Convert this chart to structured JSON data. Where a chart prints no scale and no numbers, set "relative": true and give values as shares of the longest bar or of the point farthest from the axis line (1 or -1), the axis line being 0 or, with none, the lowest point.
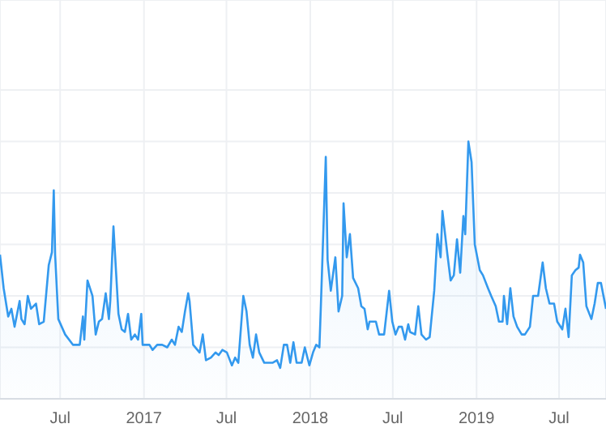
{
  "chart_data": {
    "type": "area",
    "relative": true,
    "grid": true,
    "x": [
      "2016-02-20",
      "2016-02-28",
      "2016-03-09",
      "2016-03-16",
      "2016-03-23",
      "2016-04-03",
      "2016-04-07",
      "2016-04-14",
      "2016-04-21",
      "2016-04-28",
      "2016-05-09",
      "2016-05-16",
      "2016-05-26",
      "2016-06-06",
      "2016-06-13",
      "2016-06-17",
      "2016-06-20",
      "2016-06-27",
      "2016-07-12",
      "2016-07-29",
      "2016-08-13",
      "2016-08-20",
      "2016-08-23",
      "2016-08-30",
      "2016-09-10",
      "2016-09-17",
      "2016-09-24",
      "2016-10-01",
      "2016-10-09",
      "2016-10-16",
      "2016-10-19",
      "2016-10-26",
      "2016-11-06",
      "2016-11-13",
      "2016-11-20",
      "2016-11-27",
      "2016-12-04",
      "2016-12-12",
      "2016-12-19",
      "2016-12-26",
      "2016-12-29",
      "2017-01-13",
      "2017-01-20",
      "2017-01-30",
      "2017-02-10",
      "2017-02-21",
      "2017-03-03",
      "2017-03-10",
      "2017-03-18",
      "2017-03-25",
      "2017-04-01",
      "2017-04-08",
      "2017-04-11",
      "2017-04-19",
      "2017-05-03",
      "2017-05-10",
      "2017-05-17",
      "2017-05-28",
      "2017-06-07",
      "2017-06-14",
      "2017-06-22",
      "2017-07-02",
      "2017-07-13",
      "2017-07-20",
      "2017-07-27",
      "2017-08-07",
      "2017-08-14",
      "2017-08-21",
      "2017-08-28",
      "2017-09-04",
      "2017-09-11",
      "2017-09-22",
      "2017-10-10",
      "2017-10-20",
      "2017-10-27",
      "2017-11-04",
      "2017-11-11",
      "2017-11-18",
      "2017-11-25",
      "2017-12-02",
      "2017-12-13",
      "2017-12-20",
      "2017-12-30",
      "2018-01-07",
      "2018-01-14",
      "2018-01-21",
      "2018-01-24",
      "2018-02-04",
      "2018-02-08",
      "2018-02-15",
      "2018-02-25",
      "2018-03-04",
      "2018-03-12",
      "2018-03-15",
      "2018-03-22",
      "2018-03-29",
      "2018-04-05",
      "2018-04-16",
      "2018-04-23",
      "2018-04-30",
      "2018-05-07",
      "2018-05-11",
      "2018-05-25",
      "2018-06-01",
      "2018-06-12",
      "2018-06-23",
      "2018-06-30",
      "2018-07-07",
      "2018-07-14",
      "2018-07-21",
      "2018-07-28",
      "2018-08-04",
      "2018-08-08",
      "2018-08-19",
      "2018-08-26",
      "2018-09-02",
      "2018-09-12",
      "2018-09-20",
      "2018-09-30",
      "2018-10-07",
      "2018-10-14",
      "2018-10-18",
      "2018-10-29",
      "2018-11-05",
      "2018-11-12",
      "2018-11-19",
      "2018-11-26",
      "2018-12-03",
      "2018-12-07",
      "2018-12-14",
      "2018-12-21",
      "2018-12-28",
      "2019-01-08",
      "2019-01-15",
      "2019-01-26",
      "2019-02-02",
      "2019-02-12",
      "2019-02-19",
      "2019-02-27",
      "2019-03-02",
      "2019-03-09",
      "2019-03-16",
      "2019-03-23",
      "2019-03-31",
      "2019-04-10",
      "2019-04-17",
      "2019-04-28",
      "2019-05-05",
      "2019-05-16",
      "2019-05-26",
      "2019-06-02",
      "2019-06-10",
      "2019-06-20",
      "2019-06-27",
      "2019-07-08",
      "2019-07-15",
      "2019-07-22",
      "2019-07-29",
      "2019-08-06",
      "2019-08-13",
      "2019-08-16",
      "2019-08-23",
      "2019-08-30",
      "2019-09-10",
      "2019-09-17",
      "2019-09-24",
      "2019-10-01",
      "2019-10-12"
    ],
    "values": [
      0.56,
      0.43,
      0.32,
      0.35,
      0.28,
      0.38,
      0.31,
      0.29,
      0.4,
      0.35,
      0.37,
      0.29,
      0.3,
      0.52,
      0.57,
      0.81,
      0.56,
      0.31,
      0.25,
      0.21,
      0.21,
      0.32,
      0.23,
      0.46,
      0.4,
      0.25,
      0.3,
      0.31,
      0.41,
      0.31,
      0.38,
      0.67,
      0.33,
      0.27,
      0.26,
      0.33,
      0.23,
      0.25,
      0.23,
      0.33,
      0.21,
      0.21,
      0.19,
      0.21,
      0.21,
      0.2,
      0.23,
      0.21,
      0.28,
      0.26,
      0.34,
      0.41,
      0.38,
      0.21,
      0.18,
      0.25,
      0.15,
      0.16,
      0.18,
      0.17,
      0.19,
      0.18,
      0.13,
      0.16,
      0.14,
      0.4,
      0.34,
      0.21,
      0.16,
      0.25,
      0.18,
      0.14,
      0.14,
      0.15,
      0.12,
      0.21,
      0.21,
      0.14,
      0.22,
      0.14,
      0.14,
      0.2,
      0.13,
      0.18,
      0.21,
      0.2,
      0.35,
      0.94,
      0.54,
      0.42,
      0.55,
      0.34,
      0.4,
      0.76,
      0.55,
      0.64,
      0.47,
      0.43,
      0.36,
      0.35,
      0.27,
      0.3,
      0.3,
      0.25,
      0.25,
      0.42,
      0.3,
      0.25,
      0.28,
      0.28,
      0.23,
      0.29,
      0.26,
      0.25,
      0.36,
      0.25,
      0.23,
      0.24,
      0.42,
      0.64,
      0.55,
      0.73,
      0.56,
      0.46,
      0.48,
      0.62,
      0.49,
      0.71,
      0.64,
      1,
      0.92,
      0.6,
      0.5,
      0.48,
      0.43,
      0.4,
      0.36,
      0.3,
      0.3,
      0.4,
      0.29,
      0.43,
      0.32,
      0.28,
      0.25,
      0.25,
      0.28,
      0.4,
      0.4,
      0.53,
      0.43,
      0.37,
      0.37,
      0.3,
      0.27,
      0.35,
      0.24,
      0.48,
      0.5,
      0.51,
      0.56,
      0.53,
      0.36,
      0.31,
      0.37,
      0.45,
      0.45,
      0.35
    ],
    "color": "#3399ee",
    "xlim": [
      "2016-02-20",
      "2019-10-12"
    ],
    "xticks": [
      {
        "value": "2016-07-01",
        "label": "Jul"
      },
      {
        "value": "2017-01-01",
        "label": "2017"
      },
      {
        "value": "2017-07-01",
        "label": "Jul"
      },
      {
        "value": "2018-01-01",
        "label": "2018"
      },
      {
        "value": "2018-07-01",
        "label": "Jul"
      },
      {
        "value": "2019-01-01",
        "label": "2019"
      },
      {
        "value": "2019-07-01",
        "label": "Jul"
      }
    ]
  }
}
